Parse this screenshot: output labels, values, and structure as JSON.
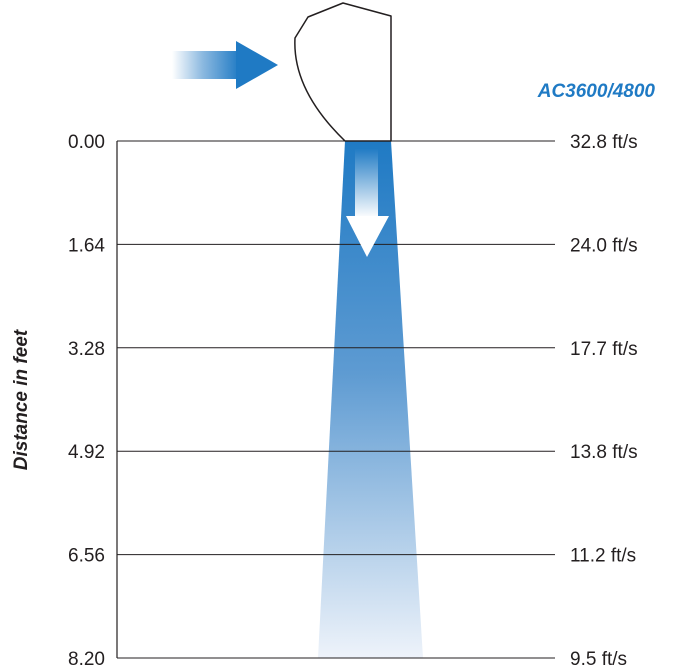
{
  "model_label": "AC3600/4800",
  "y_axis_title": "Distance in feet",
  "colors": {
    "accent_blue": "#1f7ac4",
    "gridline": "#231f20",
    "text": "#231f20"
  },
  "icons": {
    "intake_arrow": "arrow-right-icon",
    "discharge_arrow": "arrow-down-icon",
    "unit_outline": "air-unit-outline-icon"
  },
  "chart_data": {
    "type": "table",
    "title": "",
    "x_label": "",
    "y_label": "Distance in feet",
    "rows": [
      {
        "distance": "0.00",
        "velocity": "32.8 ft/s"
      },
      {
        "distance": "1.64",
        "velocity": "24.0 ft/s"
      },
      {
        "distance": "3.28",
        "velocity": "17.7 ft/s"
      },
      {
        "distance": "4.92",
        "velocity": "13.8 ft/s"
      },
      {
        "distance": "6.56",
        "velocity": "11.2 ft/s"
      },
      {
        "distance": "8.20",
        "velocity": "9.5 ft/s"
      }
    ],
    "distance_unit": "feet",
    "velocity_unit": "ft/s",
    "ylim": [
      0,
      8.2
    ],
    "grid": true
  }
}
